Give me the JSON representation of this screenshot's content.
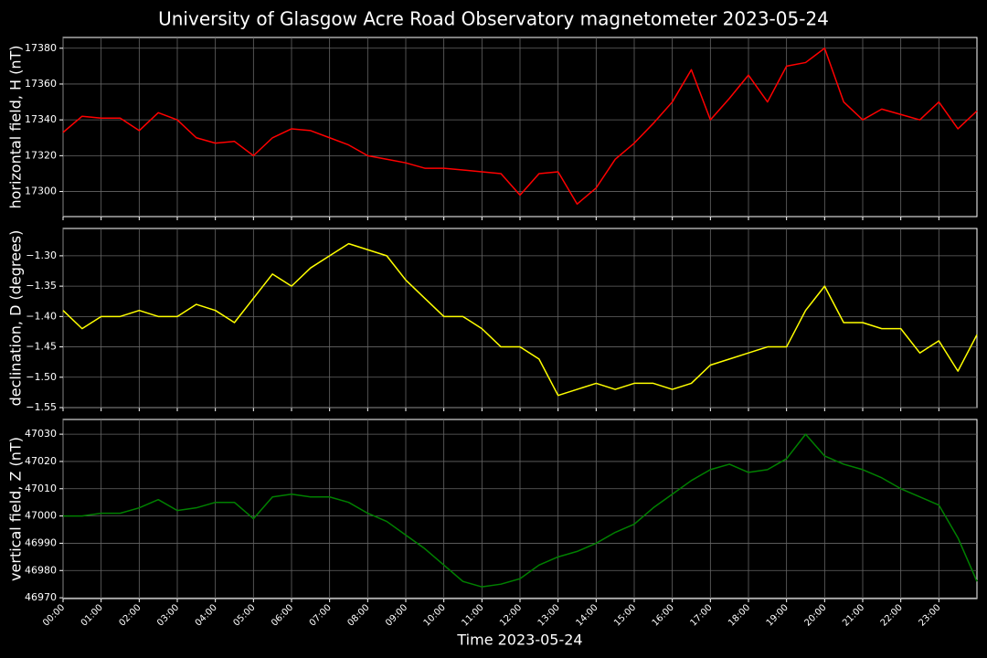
{
  "title": "University of Glasgow Acre Road Observatory magnetometer 2023-05-24",
  "chart_data": [
    {
      "type": "line",
      "y_label": "horizontal field, H (nT)",
      "color": "#ff0000",
      "grid": true,
      "xlim": [
        0,
        24
      ],
      "xticks": [
        0,
        1,
        2,
        3,
        4,
        5,
        6,
        7,
        8,
        9,
        10,
        11,
        12,
        13,
        14,
        15,
        16,
        17,
        18,
        19,
        20,
        21,
        22,
        23
      ],
      "ylim": [
        17286,
        17386
      ],
      "yticks": [
        17300,
        17320,
        17340,
        17360,
        17380
      ],
      "x": [
        0,
        0.5,
        1,
        1.5,
        2,
        2.5,
        3,
        3.5,
        4,
        4.5,
        5,
        5.5,
        6,
        6.5,
        7,
        7.5,
        8,
        8.5,
        9,
        9.5,
        10,
        10.5,
        11,
        11.5,
        12,
        12.5,
        13,
        13.5,
        14,
        14.5,
        15,
        15.5,
        16,
        16.5,
        17,
        17.5,
        18,
        18.5,
        19,
        19.5,
        20,
        20.5,
        21,
        21.5,
        22,
        22.5,
        23,
        23.5,
        24
      ],
      "values": [
        17333,
        17342,
        17341,
        17341,
        17334,
        17344,
        17340,
        17330,
        17327,
        17328,
        17320,
        17330,
        17335,
        17334,
        17330,
        17326,
        17320,
        17318,
        17316,
        17313,
        17313,
        17312,
        17311,
        17310,
        17298,
        17310,
        17311,
        17293,
        17302,
        17318,
        17327,
        17338,
        17350,
        17368,
        17340,
        17352,
        17365,
        17350,
        17370,
        17372,
        17380,
        17350,
        17340,
        17346,
        17343,
        17340,
        17350,
        17335,
        17345
      ]
    },
    {
      "type": "line",
      "y_label": "declination, D (degrees)",
      "color": "#ffff00",
      "grid": true,
      "xlim": [
        0,
        24
      ],
      "xticks": [
        0,
        1,
        2,
        3,
        4,
        5,
        6,
        7,
        8,
        9,
        10,
        11,
        12,
        13,
        14,
        15,
        16,
        17,
        18,
        19,
        20,
        21,
        22,
        23
      ],
      "ylim": [
        -1.55,
        -1.255
      ],
      "yticks": [
        {
          "value": -1.55,
          "label": "−1.55"
        },
        {
          "value": -1.5,
          "label": "−1.50"
        },
        {
          "value": -1.45,
          "label": "−1.45"
        },
        {
          "value": -1.4,
          "label": "−1.40"
        },
        {
          "value": -1.35,
          "label": "−1.35"
        },
        {
          "value": -1.3,
          "label": "−1.30"
        }
      ],
      "x": [
        0,
        0.5,
        1,
        1.5,
        2,
        2.5,
        3,
        3.5,
        4,
        4.5,
        5,
        5.5,
        6,
        6.5,
        7,
        7.5,
        8,
        8.5,
        9,
        9.5,
        10,
        10.5,
        11,
        11.5,
        12,
        12.5,
        13,
        13.5,
        14,
        14.5,
        15,
        15.5,
        16,
        16.5,
        17,
        17.5,
        18,
        18.5,
        19,
        19.5,
        20,
        20.5,
        21,
        21.5,
        22,
        22.5,
        23,
        23.5,
        24
      ],
      "values": [
        -1.39,
        -1.42,
        -1.4,
        -1.4,
        -1.39,
        -1.4,
        -1.4,
        -1.38,
        -1.39,
        -1.41,
        -1.37,
        -1.33,
        -1.35,
        -1.32,
        -1.3,
        -1.28,
        -1.29,
        -1.3,
        -1.34,
        -1.37,
        -1.4,
        -1.4,
        -1.42,
        -1.45,
        -1.45,
        -1.47,
        -1.53,
        -1.52,
        -1.51,
        -1.52,
        -1.51,
        -1.51,
        -1.52,
        -1.51,
        -1.48,
        -1.47,
        -1.46,
        -1.45,
        -1.45,
        -1.39,
        -1.35,
        -1.41,
        -1.41,
        -1.42,
        -1.42,
        -1.46,
        -1.44,
        -1.49,
        -1.43
      ]
    },
    {
      "type": "line",
      "y_label": "vertical field, Z (nT)",
      "x_label": "Time 2023-05-24",
      "color": "#008000",
      "grid": true,
      "xlim": [
        0,
        24
      ],
      "xticks": [
        {
          "value": 0,
          "label": "00:00"
        },
        {
          "value": 1,
          "label": "01:00"
        },
        {
          "value": 2,
          "label": "02:00"
        },
        {
          "value": 3,
          "label": "03:00"
        },
        {
          "value": 4,
          "label": "04:00"
        },
        {
          "value": 5,
          "label": "05:00"
        },
        {
          "value": 6,
          "label": "06:00"
        },
        {
          "value": 7,
          "label": "07:00"
        },
        {
          "value": 8,
          "label": "08:00"
        },
        {
          "value": 9,
          "label": "09:00"
        },
        {
          "value": 10,
          "label": "10:00"
        },
        {
          "value": 11,
          "label": "11:00"
        },
        {
          "value": 12,
          "label": "12:00"
        },
        {
          "value": 13,
          "label": "13:00"
        },
        {
          "value": 14,
          "label": "14:00"
        },
        {
          "value": 15,
          "label": "15:00"
        },
        {
          "value": 16,
          "label": "16:00"
        },
        {
          "value": 17,
          "label": "17:00"
        },
        {
          "value": 18,
          "label": "18:00"
        },
        {
          "value": 19,
          "label": "19:00"
        },
        {
          "value": 20,
          "label": "20:00"
        },
        {
          "value": 21,
          "label": "21:00"
        },
        {
          "value": 22,
          "label": "22:00"
        },
        {
          "value": 23,
          "label": "23:00"
        }
      ],
      "ylim": [
        46969.7,
        47035.4
      ],
      "yticks": [
        46970,
        46980,
        46990,
        47000,
        47010,
        47020,
        47030
      ],
      "x": [
        0,
        0.5,
        1,
        1.5,
        2,
        2.5,
        3,
        3.5,
        4,
        4.5,
        5,
        5.5,
        6,
        6.5,
        7,
        7.5,
        8,
        8.5,
        9,
        9.5,
        10,
        10.5,
        11,
        11.5,
        12,
        12.5,
        13,
        13.5,
        14,
        14.5,
        15,
        15.5,
        16,
        16.5,
        17,
        17.5,
        18,
        18.5,
        19,
        19.5,
        20,
        20.5,
        21,
        21.5,
        22,
        22.5,
        23,
        23.5,
        24
      ],
      "values": [
        47000,
        47000,
        47001,
        47001,
        47003,
        47006,
        47002,
        47003,
        47005,
        47005,
        46999,
        47007,
        47008,
        47007,
        47007,
        47005,
        47001,
        46998,
        46993,
        46988,
        46982,
        46976,
        46974,
        46975,
        46977,
        46982,
        46985,
        46987,
        46990,
        46994,
        46997,
        47003,
        47008,
        47013,
        47017,
        47019,
        47016,
        47017,
        47021,
        47030,
        47022,
        47019,
        47017,
        47014,
        47010,
        47007,
        47004,
        46992,
        46976
      ]
    }
  ]
}
